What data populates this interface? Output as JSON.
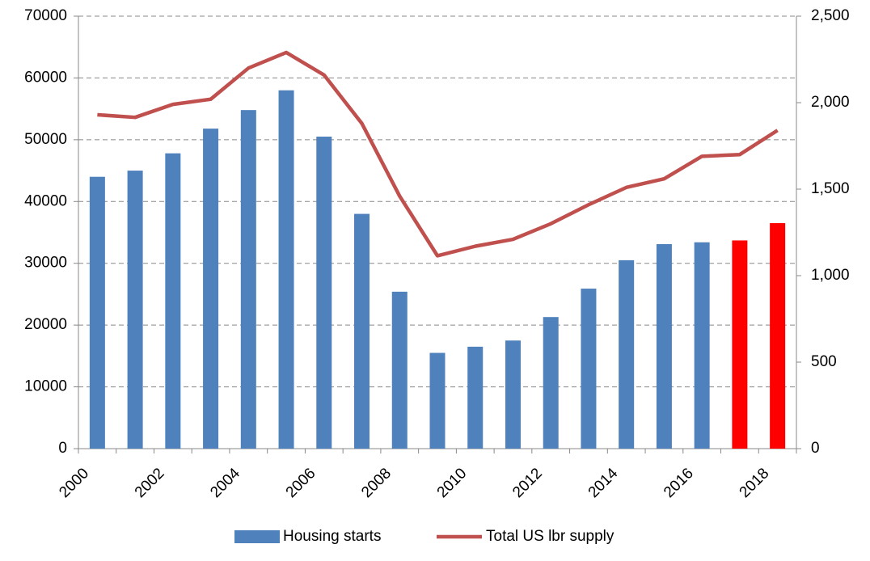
{
  "chart_data": {
    "type": "bar-line",
    "categories": [
      "2000",
      null,
      "2002",
      null,
      "2004",
      null,
      "2006",
      null,
      "2008",
      null,
      "2010",
      null,
      "2012",
      null,
      "2014",
      null,
      "2016",
      null,
      "2018"
    ],
    "series": [
      {
        "name": "Housing starts",
        "type": "bar",
        "color": "#4f81bd",
        "colors": [
          "#4f81bd",
          "#4f81bd",
          "#4f81bd",
          "#4f81bd",
          "#4f81bd",
          "#4f81bd",
          "#4f81bd",
          "#4f81bd",
          "#4f81bd",
          "#4f81bd",
          "#4f81bd",
          "#4f81bd",
          "#4f81bd",
          "#4f81bd",
          "#4f81bd",
          "#4f81bd",
          "#4f81bd",
          "#ff0000",
          "#ff0000"
        ],
        "values": [
          44000,
          45000,
          47800,
          51800,
          54800,
          58000,
          50500,
          38000,
          25400,
          15500,
          16500,
          17500,
          21300,
          25900,
          30500,
          33100,
          33400,
          33700,
          36500
        ]
      },
      {
        "name": "Total US lbr supply",
        "type": "line",
        "axis": "y2",
        "color": "#c0504d",
        "values": [
          1930,
          1915,
          1990,
          2020,
          2200,
          2290,
          2160,
          1880,
          1460,
          1115,
          1170,
          1210,
          1300,
          1410,
          1510,
          1560,
          1690,
          1700,
          1840
        ]
      }
    ],
    "ylim": [
      0,
      70000
    ],
    "yticks": [
      0,
      10000,
      20000,
      30000,
      40000,
      50000,
      60000,
      70000
    ],
    "y2lim": [
      0,
      2500
    ],
    "y2ticks": [
      0,
      500,
      {
        "value": 1000,
        "label": "1,000"
      },
      {
        "value": 1500,
        "label": "1,500"
      },
      {
        "value": 2000,
        "label": "2,000"
      },
      {
        "value": 2500,
        "label": "2,500"
      }
    ],
    "grid": true,
    "legend": "bottom"
  }
}
